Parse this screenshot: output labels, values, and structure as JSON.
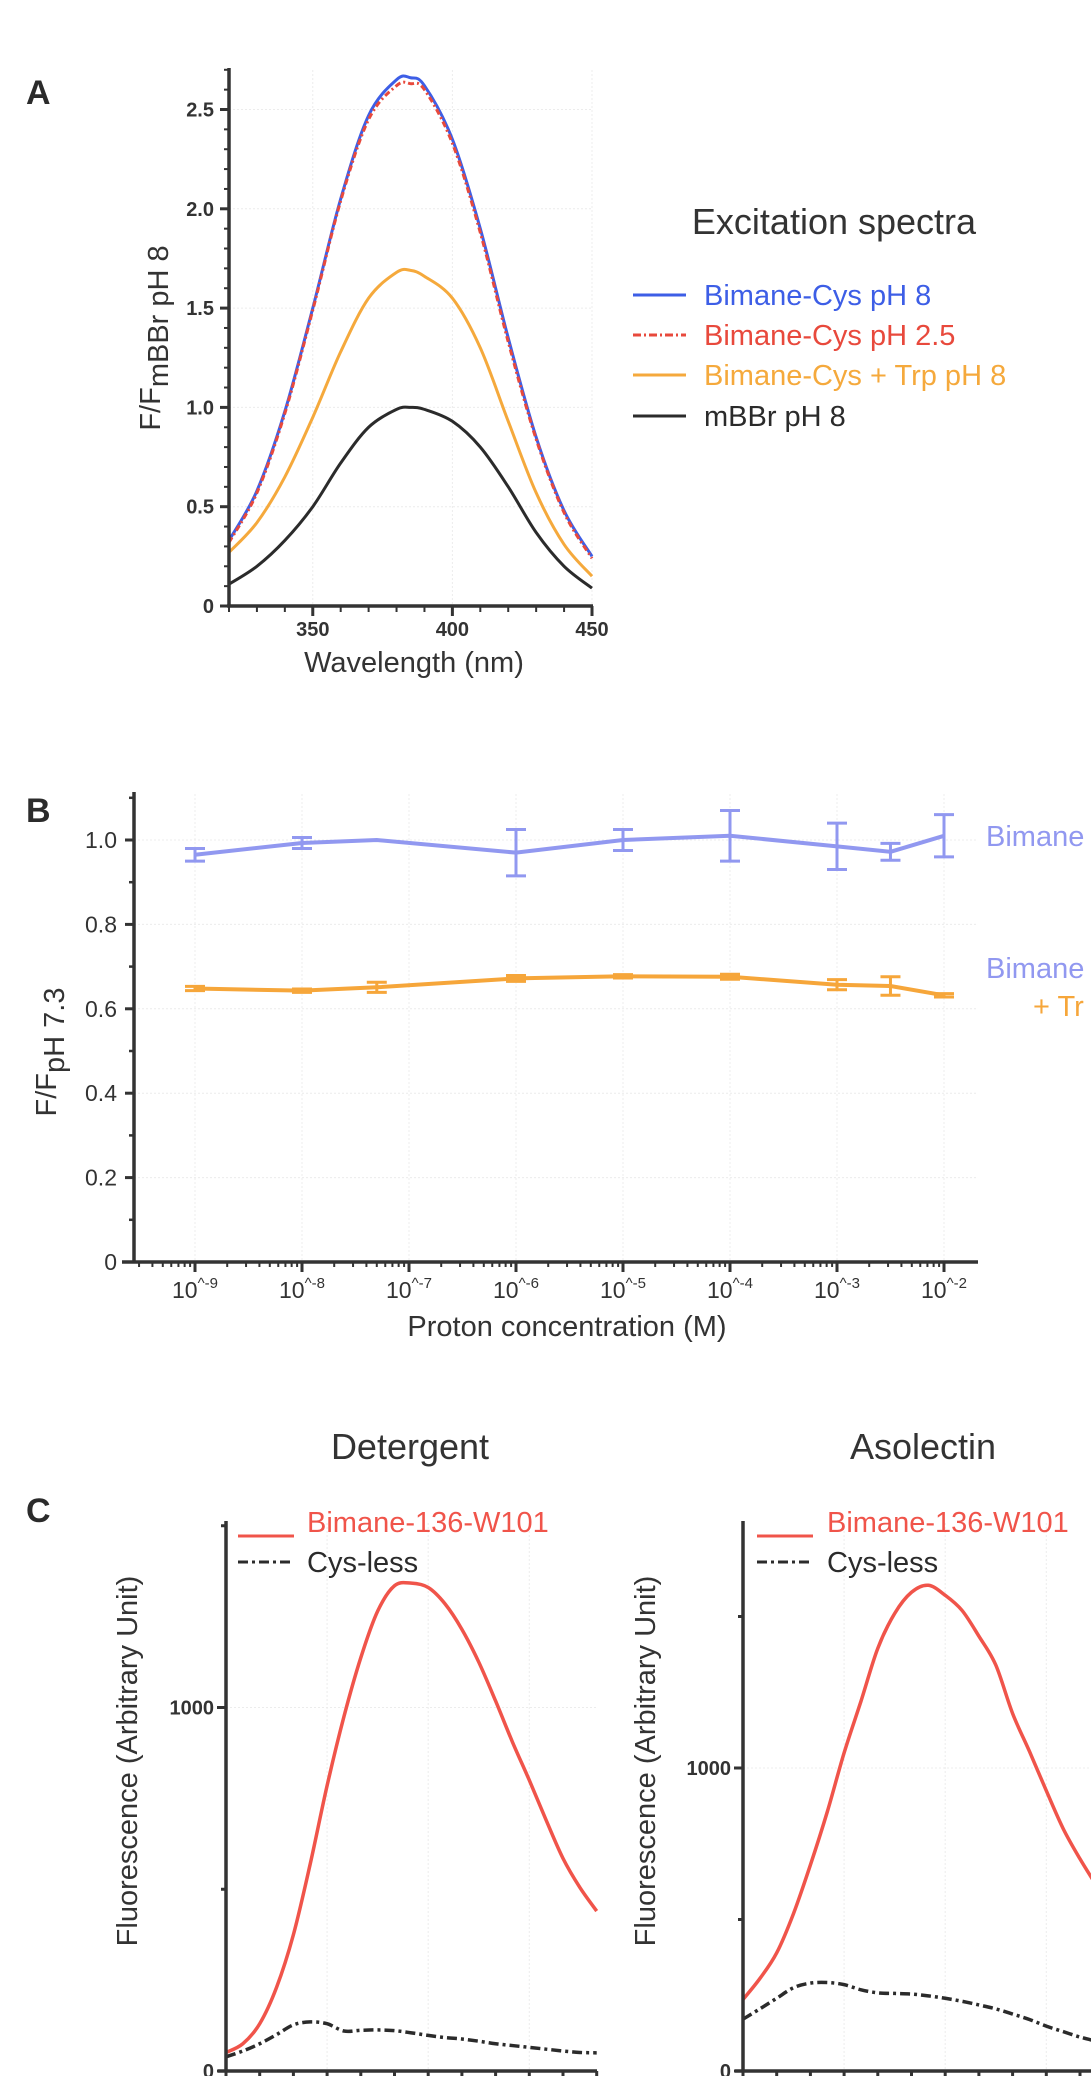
{
  "panel_labels": {
    "a": "A",
    "b": "B",
    "c": "C"
  },
  "colors": {
    "blue": "#3d5ee6",
    "red": "#e8493c",
    "orange": "#f5a93c",
    "black": "#2b2b2b",
    "lavender": "#9198f0",
    "orange_b": "#f6a63a",
    "red_c": "#f0544a",
    "axis": "#333333",
    "grid": "#ececec"
  },
  "chart_data": [
    {
      "type": "line",
      "panel": "A",
      "legend_title": "Excitation spectra",
      "xlabel": "Wavelength (nm)",
      "ylabel_main": "F/F",
      "ylabel_sub": "mBBr pH 8",
      "xlim": [
        320,
        450
      ],
      "ylim": [
        0,
        2.7
      ],
      "x_ticks": [
        350,
        400,
        450
      ],
      "x_tick_labels": [
        "350",
        "400",
        "450"
      ],
      "y_ticks": [
        0,
        0.5,
        1.0,
        1.5,
        2.0,
        2.5
      ],
      "y_tick_labels": [
        "0",
        "0.5",
        "1.0",
        "1.5",
        "2.0",
        "2.5"
      ],
      "grid": true,
      "legend_placement": "right",
      "x": [
        320,
        330,
        340,
        350,
        360,
        370,
        380,
        385,
        390,
        400,
        410,
        420,
        430,
        440,
        450
      ],
      "series": [
        {
          "name": "Bimane-Cys pH 8",
          "color": "#3d5ee6",
          "style": "solid",
          "values": [
            0.33,
            0.58,
            0.98,
            1.5,
            2.05,
            2.47,
            2.65,
            2.66,
            2.62,
            2.35,
            1.9,
            1.35,
            0.85,
            0.48,
            0.25
          ]
        },
        {
          "name": "Bimane-Cys pH 2.5",
          "color": "#e8493c",
          "style": "dashdot",
          "values": [
            0.32,
            0.57,
            0.97,
            1.49,
            2.04,
            2.45,
            2.62,
            2.63,
            2.6,
            2.33,
            1.88,
            1.33,
            0.84,
            0.47,
            0.24
          ]
        },
        {
          "name": "Bimane-Cys + Trp pH 8",
          "color": "#f5a93c",
          "style": "solid",
          "values": [
            0.27,
            0.42,
            0.65,
            0.95,
            1.28,
            1.55,
            1.68,
            1.69,
            1.66,
            1.55,
            1.3,
            0.93,
            0.57,
            0.31,
            0.15
          ]
        },
        {
          "name": "mBBr pH 8",
          "color": "#2b2b2b",
          "style": "solid",
          "values": [
            0.11,
            0.2,
            0.33,
            0.5,
            0.72,
            0.9,
            0.99,
            1.0,
            0.99,
            0.93,
            0.8,
            0.6,
            0.37,
            0.2,
            0.09
          ]
        }
      ]
    },
    {
      "type": "line",
      "panel": "B",
      "xlabel": "Proton concentration (M)",
      "ylabel_main": "F/F",
      "ylabel_sub": "pH 7.3",
      "x_scale": "log",
      "x_ticks": [
        "10^-9",
        "10^-8",
        "10^-7",
        "10^-6",
        "10^-5",
        "10^-4",
        "10^-3",
        "10^-2"
      ],
      "y_ticks": [
        0,
        0.2,
        0.4,
        0.6,
        0.8,
        1.0
      ],
      "y_tick_labels": [
        "0",
        "0.2",
        "0.4",
        "0.6",
        "0.8",
        "1.0"
      ],
      "ylim": [
        0,
        1.1
      ],
      "grid": true,
      "x": [
        1e-09,
        1e-08,
        5e-08,
        1e-06,
        1e-05,
        0.0001,
        0.001,
        0.00316,
        0.01
      ],
      "series": [
        {
          "label_lines": [
            "Bimane"
          ],
          "label_colors": [
            "#9198f0"
          ],
          "color": "#9198f0",
          "values": [
            0.965,
            0.993,
            1.0,
            0.97,
            1.0,
            1.01,
            0.985,
            0.972,
            1.01
          ],
          "errors": [
            0.015,
            0.013,
            0,
            0.055,
            0.025,
            0.06,
            0.055,
            0.02,
            0.05
          ]
        },
        {
          "label_lines": [
            "Bimane",
            "+ Tr"
          ],
          "label_colors": [
            "#9198f0",
            "#f6a63a"
          ],
          "color": "#f6a63a",
          "values": [
            0.648,
            0.643,
            0.651,
            0.672,
            0.677,
            0.676,
            0.657,
            0.654,
            0.632
          ],
          "errors": [
            0.005,
            0.004,
            0.012,
            0.007,
            0.004,
            0.006,
            0.012,
            0.022,
            0.004
          ]
        }
      ]
    },
    {
      "type": "line",
      "panel": "C",
      "title": "Detergent",
      "ylabel": "Fluorescence (Arbitrary Unit)",
      "ylim": [
        0,
        1500
      ],
      "y_ticks": [
        0,
        1000
      ],
      "y_tick_labels": [
        "0",
        "1000"
      ],
      "grid": true,
      "legend_placement": "top-left",
      "series": [
        {
          "name": "Bimane-136-W101",
          "color": "#f0544a",
          "style": "solid",
          "values": [
            51,
            75,
            130,
            230,
            375,
            570,
            785,
            975,
            1137,
            1265,
            1335,
            1342,
            1330,
            1285,
            1215,
            1125,
            1018,
            905,
            800,
            690,
            585,
            505,
            440
          ]
        },
        {
          "name": "Cys-less",
          "color": "#2b2b2b",
          "style": "dashdot",
          "values": [
            39,
            55,
            75,
            100,
            127,
            135,
            130,
            110,
            112,
            113,
            111,
            105,
            98,
            92,
            88,
            82,
            75,
            70,
            65,
            60,
            55,
            51,
            50
          ]
        }
      ]
    },
    {
      "type": "line",
      "panel": "C",
      "title": "Asolectin",
      "ylabel": "Fluorescence (Arbitrary Unit)",
      "ylim": [
        0,
        1800
      ],
      "y_ticks": [
        0,
        1000
      ],
      "y_tick_labels": [
        "0",
        "1000"
      ],
      "grid": true,
      "legend_placement": "top-left",
      "series": [
        {
          "name": "Bimane-136-W101",
          "color": "#f0544a",
          "style": "solid",
          "values": [
            236,
            305,
            390,
            520,
            680,
            855,
            1050,
            1220,
            1395,
            1510,
            1580,
            1603,
            1570,
            1520,
            1435,
            1340,
            1180,
            1055,
            925,
            800,
            700,
            610
          ]
        },
        {
          "name": "Cys-less",
          "color": "#2b2b2b",
          "style": "dashdot",
          "values": [
            171,
            205,
            240,
            275,
            290,
            292,
            285,
            268,
            258,
            256,
            254,
            248,
            240,
            230,
            218,
            205,
            188,
            170,
            148,
            130,
            112,
            98
          ]
        }
      ]
    }
  ]
}
